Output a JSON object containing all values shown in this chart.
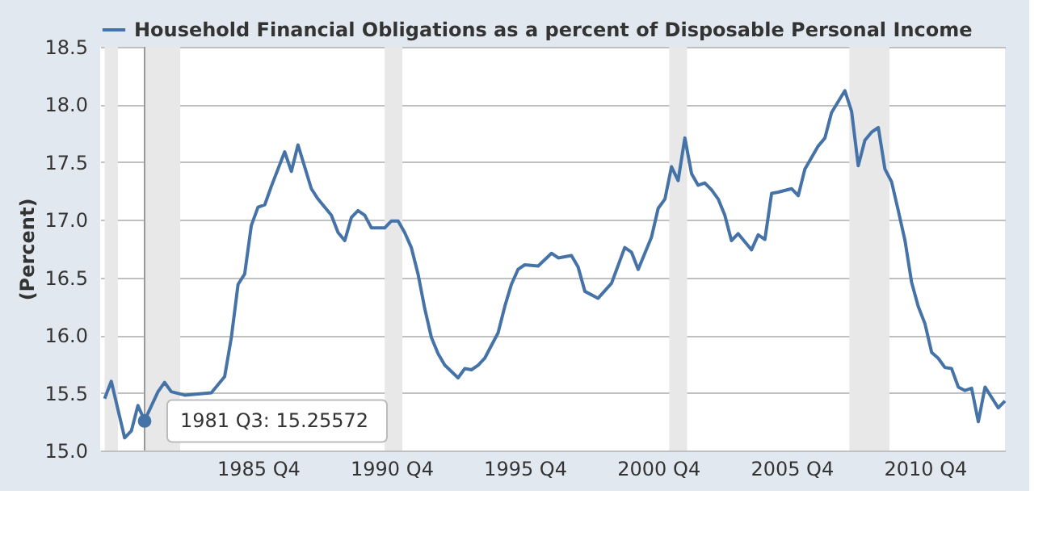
{
  "chart_data": {
    "type": "line",
    "ylabel": "(Percent)",
    "x": [
      "1980-01",
      "1980-04",
      "1980-10",
      "1981-01",
      "1981-04",
      "1981-07",
      "1982-01",
      "1982-04",
      "1982-07",
      "1983-01",
      "1983-07",
      "1984-01",
      "1984-07",
      "1984-10",
      "1985-01",
      "1985-04",
      "1985-07",
      "1985-10",
      "1986-01",
      "1986-04",
      "1986-10",
      "1987-01",
      "1987-04",
      "1987-10",
      "1988-01",
      "1988-07",
      "1988-10",
      "1989-01",
      "1989-04",
      "1989-07",
      "1989-10",
      "1990-01",
      "1990-07",
      "1990-10",
      "1991-01",
      "1991-04",
      "1991-07",
      "1991-10",
      "1992-01",
      "1992-04",
      "1992-07",
      "1992-10",
      "1993-04",
      "1993-07",
      "1993-10",
      "1994-01",
      "1994-04",
      "1994-07",
      "1994-10",
      "1995-01",
      "1995-04",
      "1995-07",
      "1995-10",
      "1996-04",
      "1996-10",
      "1997-01",
      "1997-07",
      "1997-10",
      "1998-01",
      "1998-07",
      "1999-01",
      "1999-07",
      "1999-10",
      "2000-01",
      "2000-07",
      "2000-10",
      "2001-01",
      "2001-04",
      "2001-07",
      "2001-10",
      "2002-01",
      "2002-04",
      "2002-07",
      "2002-10",
      "2003-01",
      "2003-04",
      "2003-07",
      "2003-10",
      "2004-04",
      "2004-07",
      "2004-10",
      "2005-01",
      "2005-04",
      "2005-10",
      "2006-01",
      "2006-04",
      "2006-10",
      "2007-01",
      "2007-04",
      "2007-10",
      "2008-01",
      "2008-04",
      "2008-07",
      "2008-10",
      "2009-01",
      "2009-04",
      "2009-07",
      "2009-10",
      "2010-01",
      "2010-04",
      "2010-07",
      "2010-10",
      "2011-01",
      "2011-04",
      "2011-07",
      "2011-10",
      "2012-01",
      "2012-04",
      "2012-07",
      "2012-10",
      "2013-01",
      "2013-04",
      "2013-07",
      "2013-10"
    ],
    "series": [
      {
        "name": "Household Financial Obligations as a percent of Disposable Personal Income",
        "color": "#4572a7",
        "values": [
          15.45,
          15.6,
          15.11,
          15.17,
          15.39,
          15.26,
          15.51,
          15.59,
          15.51,
          15.48,
          15.49,
          15.5,
          15.64,
          15.98,
          16.44,
          16.53,
          16.95,
          17.11,
          17.13,
          17.29,
          17.59,
          17.42,
          17.65,
          17.27,
          17.18,
          17.04,
          16.89,
          16.82,
          17.02,
          17.08,
          17.04,
          16.93,
          16.93,
          16.99,
          16.99,
          16.89,
          16.76,
          16.53,
          16.23,
          15.98,
          15.84,
          15.74,
          15.63,
          15.71,
          15.7,
          15.74,
          15.8,
          15.91,
          16.02,
          16.25,
          16.44,
          16.57,
          16.61,
          16.6,
          16.71,
          16.67,
          16.69,
          16.59,
          16.38,
          16.32,
          16.45,
          16.76,
          16.72,
          16.57,
          16.85,
          17.1,
          17.18,
          17.46,
          17.34,
          17.71,
          17.4,
          17.3,
          17.32,
          17.26,
          17.18,
          17.04,
          16.82,
          16.88,
          16.74,
          16.87,
          16.83,
          17.23,
          17.24,
          17.27,
          17.21,
          17.44,
          17.64,
          17.71,
          17.93,
          18.12,
          17.94,
          17.47,
          17.69,
          17.76,
          17.8,
          17.44,
          17.33,
          17.08,
          16.82,
          16.46,
          16.25,
          16.1,
          15.85,
          15.8,
          15.72,
          15.71,
          15.55,
          15.52,
          15.54,
          15.25,
          15.55,
          15.46,
          15.37,
          15.43
        ]
      }
    ],
    "xlim": [
      "1979-11",
      "2013-10"
    ],
    "xticks": [
      {
        "value": "1985-10",
        "label": "1985 Q4"
      },
      {
        "value": "1990-10",
        "label": "1990 Q4"
      },
      {
        "value": "1995-10",
        "label": "1995 Q4"
      },
      {
        "value": "2000-10",
        "label": "2000 Q4"
      },
      {
        "value": "2005-10",
        "label": "2005 Q4"
      },
      {
        "value": "2010-10",
        "label": "2010 Q4"
      }
    ],
    "ylim": [
      15.0,
      18.5
    ],
    "yticks": [
      {
        "value": 15,
        "label": "15.0"
      },
      {
        "value": 15.5,
        "label": "15.5"
      },
      {
        "value": 16,
        "label": "16.0"
      },
      {
        "value": 16.5,
        "label": "16.5"
      },
      {
        "value": 17,
        "label": "17.0"
      },
      {
        "value": 17.5,
        "label": "17.5"
      },
      {
        "value": 18,
        "label": "18.0"
      },
      {
        "value": 18.5,
        "label": "18.5"
      }
    ],
    "bands": [
      {
        "axis": "x",
        "from": "1980-01",
        "to": "1980-07",
        "color": "#e8e8e8"
      },
      {
        "axis": "x",
        "from": "1981-07",
        "to": "1982-11",
        "color": "#e8e8e8"
      },
      {
        "axis": "x",
        "from": "1990-07",
        "to": "1991-03",
        "color": "#e8e8e8"
      },
      {
        "axis": "x",
        "from": "2001-03",
        "to": "2001-11",
        "color": "#e8e8e8"
      },
      {
        "axis": "x",
        "from": "2007-12",
        "to": "2009-06",
        "color": "#e8e8e8"
      }
    ],
    "ref_lines": [
      {
        "axis": "x",
        "value": "1981-07",
        "color": "#999999"
      }
    ],
    "annotations": [
      {
        "text": "1981 Q3: 15.25572",
        "x": "1981-07",
        "y": 15.25572
      }
    ],
    "grid": "y",
    "legend": "top",
    "marker": "none",
    "line_style": "solid"
  }
}
